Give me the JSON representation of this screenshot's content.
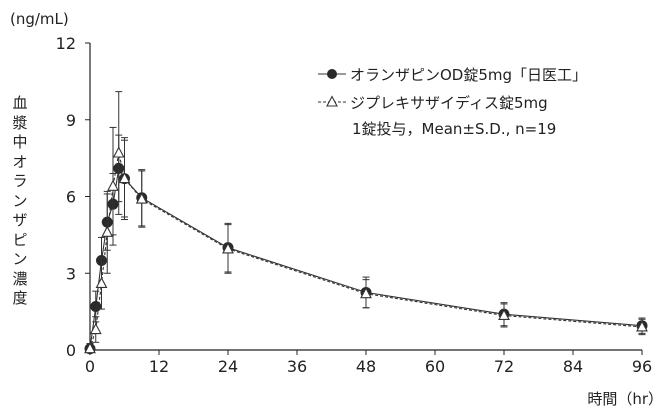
{
  "chart_data": {
    "type": "line",
    "xlabel": "時間（hr）",
    "ylabel": "血漿中オランザピン濃度",
    "yunit": "(ng/mL)",
    "xlim": [
      0,
      96
    ],
    "ylim": [
      0,
      12
    ],
    "xticks": [
      0,
      12,
      24,
      36,
      48,
      60,
      72,
      84,
      96
    ],
    "yticks": [
      0,
      3,
      6,
      9,
      12
    ],
    "grid": false,
    "legend_position": "top-right",
    "annotation": "1錠投与，Mean±S.D., n=19",
    "series": [
      {
        "name": "オランザピンOD錠5mg「日医工」",
        "marker": "filled-circle",
        "x": [
          0,
          1,
          2,
          3,
          4,
          5,
          6,
          9,
          24,
          48,
          72,
          96
        ],
        "y": [
          0.05,
          1.7,
          3.5,
          5.0,
          5.7,
          7.1,
          6.7,
          5.95,
          4.0,
          2.25,
          1.4,
          0.95
        ],
        "sd": [
          0.2,
          0.6,
          0.9,
          1.1,
          1.2,
          1.3,
          1.5,
          1.1,
          0.95,
          0.6,
          0.45,
          0.3
        ]
      },
      {
        "name": "ジプレキサザイディス錠5mg",
        "marker": "open-triangle",
        "x": [
          0,
          1,
          2,
          3,
          4,
          5,
          6,
          9,
          24,
          48,
          72,
          96
        ],
        "y": [
          0.05,
          0.8,
          2.6,
          4.6,
          6.4,
          7.7,
          6.7,
          5.9,
          3.95,
          2.2,
          1.35,
          0.9
        ],
        "sd": [
          0.2,
          0.5,
          1.0,
          1.6,
          2.3,
          2.4,
          1.6,
          1.1,
          0.95,
          0.55,
          0.45,
          0.3
        ]
      }
    ]
  }
}
